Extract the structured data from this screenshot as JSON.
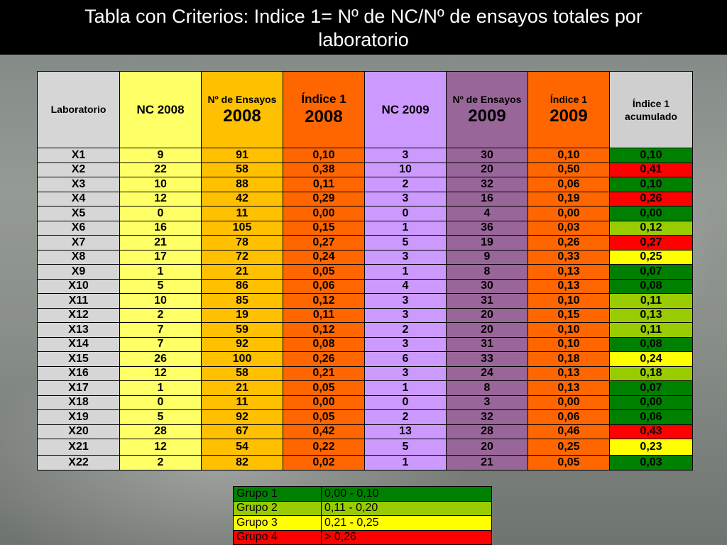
{
  "title": {
    "line1": "Tabla  con Criterios: Indice 1= Nº de NC/Nº de ensayos totales por",
    "line2": "laboratorio"
  },
  "colors": {
    "grupo1": "#008000",
    "grupo2": "#99cc00",
    "grupo3": "#ffff00",
    "grupo4": "#ff0000"
  },
  "table": {
    "headers": {
      "laboratorio": "Laboratorio",
      "nc2008": "NC 2008",
      "ensayos2008_label": "Nº de Ensayos",
      "ensayos2008_year": "2008",
      "indice2008_label": "Índice 1",
      "indice2008_year": "2008",
      "nc2009": "NC 2009",
      "ensayos2009_label": "Nº de Ensayos",
      "ensayos2009_year": "2009",
      "indice2009_label": "Índice 1",
      "indice2009_year": "2009",
      "acumulado": "Índice 1 acumulado"
    },
    "rows": [
      {
        "lab": "X1",
        "nc08": "9",
        "ens08": "91",
        "ind08": "0,10",
        "nc09": "3",
        "ens09": "30",
        "ind09": "0,10",
        "acum": "0,10",
        "grupo": 1
      },
      {
        "lab": "X2",
        "nc08": "22",
        "ens08": "58",
        "ind08": "0,38",
        "nc09": "10",
        "ens09": "20",
        "ind09": "0,50",
        "acum": "0,41",
        "grupo": 4
      },
      {
        "lab": "X3",
        "nc08": "10",
        "ens08": "88",
        "ind08": "0,11",
        "nc09": "2",
        "ens09": "32",
        "ind09": "0,06",
        "acum": "0,10",
        "grupo": 1
      },
      {
        "lab": "X4",
        "nc08": "12",
        "ens08": "42",
        "ind08": "0,29",
        "nc09": "3",
        "ens09": "16",
        "ind09": "0,19",
        "acum": "0,26",
        "grupo": 4
      },
      {
        "lab": "X5",
        "nc08": "0",
        "ens08": "11",
        "ind08": "0,00",
        "nc09": "0",
        "ens09": "4",
        "ind09": "0,00",
        "acum": "0,00",
        "grupo": 1
      },
      {
        "lab": "X6",
        "nc08": "16",
        "ens08": "105",
        "ind08": "0,15",
        "nc09": "1",
        "ens09": "36",
        "ind09": "0,03",
        "acum": "0,12",
        "grupo": 2
      },
      {
        "lab": "X7",
        "nc08": "21",
        "ens08": "78",
        "ind08": "0,27",
        "nc09": "5",
        "ens09": "19",
        "ind09": "0,26",
        "acum": "0,27",
        "grupo": 4
      },
      {
        "lab": "X8",
        "nc08": "17",
        "ens08": "72",
        "ind08": "0,24",
        "nc09": "3",
        "ens09": "9",
        "ind09": "0,33",
        "acum": "0,25",
        "grupo": 3
      },
      {
        "lab": "X9",
        "nc08": "1",
        "ens08": "21",
        "ind08": "0,05",
        "nc09": "1",
        "ens09": "8",
        "ind09": "0,13",
        "acum": "0,07",
        "grupo": 1
      },
      {
        "lab": "X10",
        "nc08": "5",
        "ens08": "86",
        "ind08": "0,06",
        "nc09": "4",
        "ens09": "30",
        "ind09": "0,13",
        "acum": "0,08",
        "grupo": 1
      },
      {
        "lab": "X11",
        "nc08": "10",
        "ens08": "85",
        "ind08": "0,12",
        "nc09": "3",
        "ens09": "31",
        "ind09": "0,10",
        "acum": "0,11",
        "grupo": 2
      },
      {
        "lab": "X12",
        "nc08": "2",
        "ens08": "19",
        "ind08": "0,11",
        "nc09": "3",
        "ens09": "20",
        "ind09": "0,15",
        "acum": "0,13",
        "grupo": 2
      },
      {
        "lab": "X13",
        "nc08": "7",
        "ens08": "59",
        "ind08": "0,12",
        "nc09": "2",
        "ens09": "20",
        "ind09": "0,10",
        "acum": "0,11",
        "grupo": 2
      },
      {
        "lab": "X14",
        "nc08": "7",
        "ens08": "92",
        "ind08": "0,08",
        "nc09": "3",
        "ens09": "31",
        "ind09": "0,10",
        "acum": "0,08",
        "grupo": 1
      },
      {
        "lab": "X15",
        "nc08": "26",
        "ens08": "100",
        "ind08": "0,26",
        "nc09": "6",
        "ens09": "33",
        "ind09": "0,18",
        "acum": "0,24",
        "grupo": 3
      },
      {
        "lab": "X16",
        "nc08": "12",
        "ens08": "58",
        "ind08": "0,21",
        "nc09": "3",
        "ens09": "24",
        "ind09": "0,13",
        "acum": "0,18",
        "grupo": 2
      },
      {
        "lab": "X17",
        "nc08": "1",
        "ens08": "21",
        "ind08": "0,05",
        "nc09": "1",
        "ens09": "8",
        "ind09": "0,13",
        "acum": "0,07",
        "grupo": 1
      },
      {
        "lab": "X18",
        "nc08": "0",
        "ens08": "11",
        "ind08": "0,00",
        "nc09": "0",
        "ens09": "3",
        "ind09": "0,00",
        "acum": "0,00",
        "grupo": 1
      },
      {
        "lab": "X19",
        "nc08": "5",
        "ens08": "92",
        "ind08": "0,05",
        "nc09": "2",
        "ens09": "32",
        "ind09": "0,06",
        "acum": "0,06",
        "grupo": 1
      },
      {
        "lab": "X20",
        "nc08": "28",
        "ens08": "67",
        "ind08": "0,42",
        "nc09": "13",
        "ens09": "28",
        "ind09": "0,46",
        "acum": "0,43",
        "grupo": 4
      },
      {
        "lab": "X21",
        "nc08": "12",
        "ens08": "54",
        "ind08": "0,22",
        "nc09": "5",
        "ens09": "20",
        "ind09": "0,25",
        "acum": "0,23",
        "grupo": 3
      },
      {
        "lab": "X22",
        "nc08": "2",
        "ens08": "82",
        "ind08": "0,02",
        "nc09": "1",
        "ens09": "21",
        "ind09": "0,05",
        "acum": "0,03",
        "grupo": 1
      }
    ]
  },
  "legend": [
    {
      "label": "Grupo 1",
      "range": "0,00 - 0,10",
      "grupo": 1
    },
    {
      "label": "Grupo 2",
      "range": "0,11 - 0,20",
      "grupo": 2
    },
    {
      "label": "Grupo 3",
      "range": "0,21 - 0,25",
      "grupo": 3
    },
    {
      "label": "Grupo 4",
      "range": "> 0,26",
      "grupo": 4
    }
  ]
}
